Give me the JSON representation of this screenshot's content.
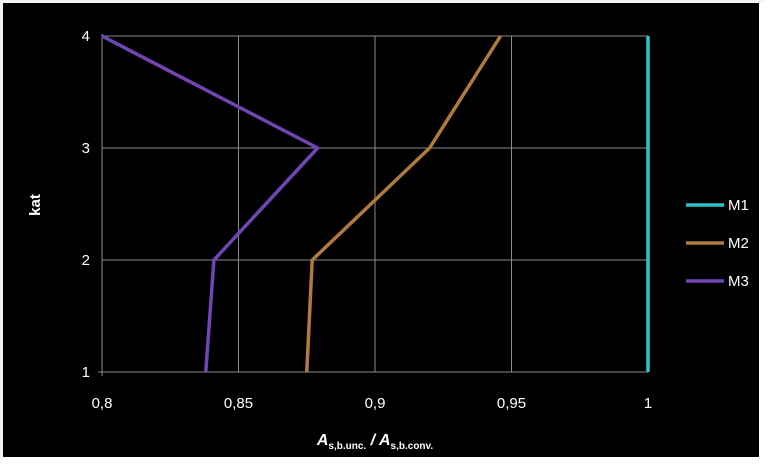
{
  "chart_data": {
    "type": "line",
    "orientation": "horizontal-profile",
    "xlabel": {
      "main_a": "A",
      "sub_a": "s,b.unc.",
      "sep": " / ",
      "main_b": "A",
      "sub_b": "s,b.conv."
    },
    "ylabel": "kat",
    "xlim": [
      0.8,
      1.0
    ],
    "ylim": [
      1,
      4
    ],
    "x_ticks": [
      "0,8",
      "0,85",
      "0,9",
      "0,95",
      "1"
    ],
    "y_ticks": [
      "1",
      "2",
      "3",
      "4"
    ],
    "grid": true,
    "legend_position": "right",
    "y": [
      1,
      2,
      3,
      4
    ],
    "series": [
      {
        "name": "M1",
        "color": "#2ec4c7",
        "values": [
          1.0,
          1.0,
          1.0,
          1.0
        ]
      },
      {
        "name": "M2",
        "color": "#b07a3c",
        "values": [
          0.875,
          0.877,
          0.92,
          0.946
        ]
      },
      {
        "name": "M3",
        "color": "#7046b5",
        "values": [
          0.838,
          0.841,
          0.879,
          0.8
        ]
      }
    ]
  }
}
